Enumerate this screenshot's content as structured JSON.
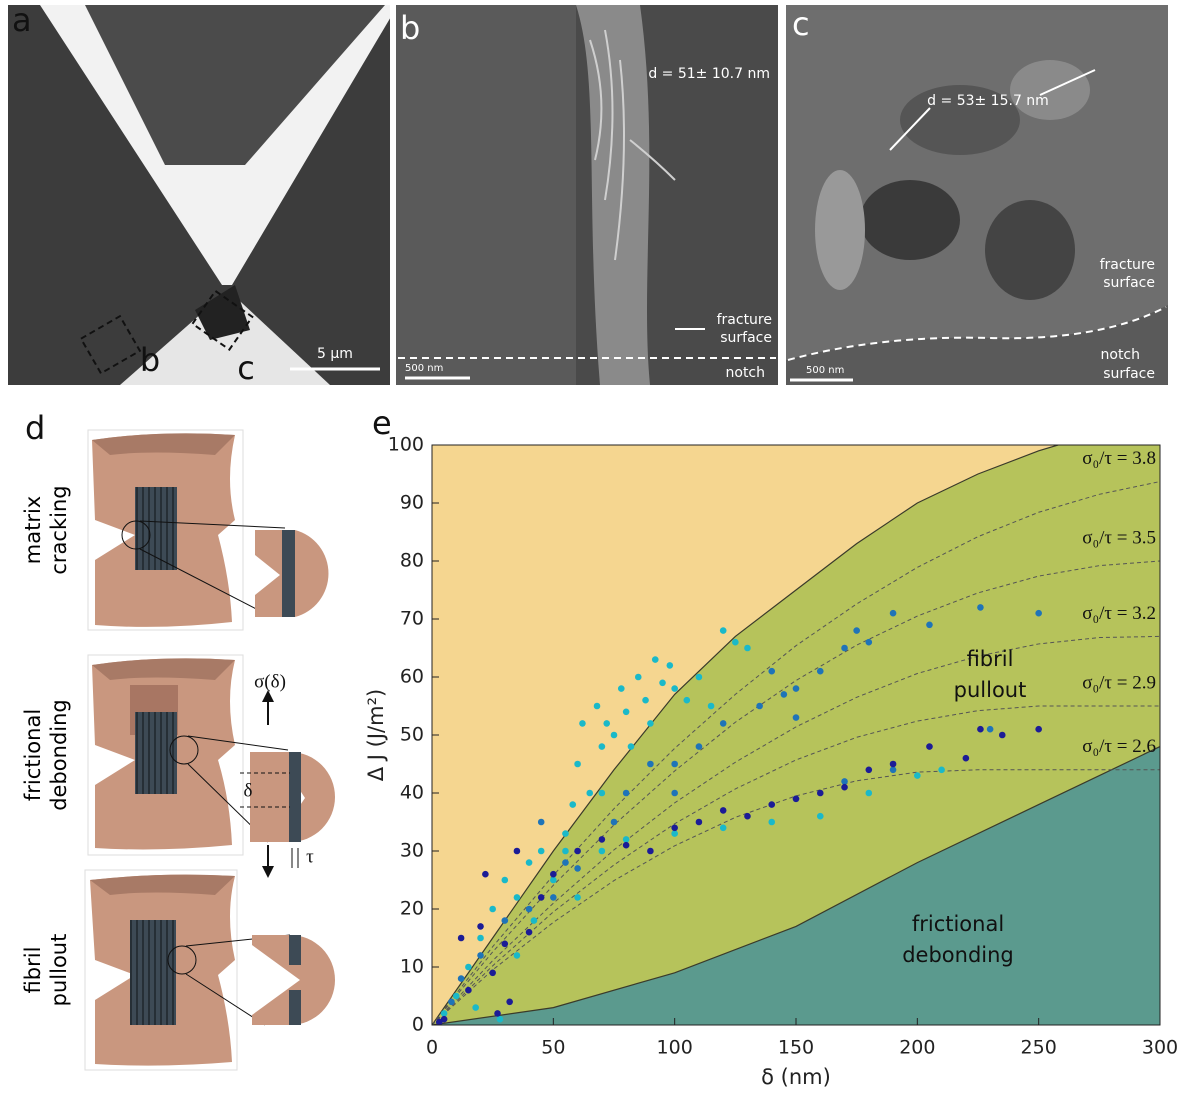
{
  "panel_labels": [
    "a",
    "b",
    "c",
    "d",
    "e"
  ],
  "panel_a": {
    "scale_bar": "5 μm",
    "inset_labels": [
      "b",
      "c"
    ]
  },
  "panel_b": {
    "measurement": "d = 51± 10.7 nm",
    "fracture_surface": [
      "fracture",
      "surface"
    ],
    "notch": "notch",
    "scale_bar": "500 nm"
  },
  "panel_c": {
    "measurement": "d = 53± 15.7 nm",
    "fracture_surface": [
      "fracture",
      "surface"
    ],
    "notch_surface": [
      "notch",
      "surface"
    ],
    "scale_bar": "500 nm"
  },
  "panel_d": {
    "stages": [
      [
        "matrix",
        "cracking"
      ],
      [
        "frictional",
        "debonding"
      ],
      [
        "fibril",
        "pullout"
      ]
    ],
    "stress": "σ(δ)",
    "displacement": "δ",
    "shear": "τ"
  },
  "chart_data": {
    "type": "scatter",
    "xlabel": "δ (nm)",
    "ylabel": "Δ J (J/m²)",
    "xlim": [
      0,
      300
    ],
    "ylim": [
      0,
      100
    ],
    "xticks": [
      0,
      50,
      100,
      150,
      200,
      250,
      300
    ],
    "yticks": [
      0,
      10,
      20,
      30,
      40,
      50,
      60,
      70,
      80,
      90,
      100
    ],
    "background": "#f5d690",
    "region_labels": [
      [
        "fibril",
        "pullout"
      ],
      [
        "frictional",
        "debonding"
      ]
    ],
    "series": [
      {
        "type": "line",
        "style": "solid",
        "color": "#3a3a2a",
        "fill": "#b6c35b",
        "x": [
          0,
          25,
          50,
          75,
          100,
          125,
          150,
          175,
          200,
          225,
          250,
          258
        ],
        "values": [
          0,
          15,
          30,
          44,
          57,
          67,
          75,
          83,
          90,
          95,
          99,
          100
        ]
      },
      {
        "type": "line",
        "style": "solid",
        "color": "#3a3a2a",
        "fill": "#5b9a8e",
        "x": [
          0,
          50,
          100,
          150,
          200,
          250,
          300
        ],
        "values": [
          0,
          3,
          9,
          17,
          28,
          38,
          48
        ]
      },
      {
        "type": "line",
        "style": "dashed",
        "color": "#555",
        "name": "σ₀/τ = 3.8",
        "x": [
          0,
          25,
          50,
          75,
          100,
          125,
          150,
          175,
          200,
          225,
          250,
          275,
          300
        ],
        "values": [
          0,
          13.5,
          25.8,
          37.3,
          47.7,
          57,
          65.4,
          72.6,
          78.9,
          84.2,
          88.4,
          91.5,
          93.7
        ]
      },
      {
        "type": "line",
        "style": "dashed",
        "color": "#555",
        "name": "σ₀/τ = 3.5",
        "x": [
          0,
          25,
          50,
          75,
          100,
          125,
          150,
          175,
          200,
          225,
          250,
          275,
          300
        ],
        "values": [
          0,
          12.6,
          24.1,
          34.5,
          43.8,
          52.2,
          59.4,
          65.5,
          70.5,
          74.5,
          77.4,
          79.2,
          80
        ]
      },
      {
        "type": "line",
        "style": "dashed",
        "color": "#555",
        "name": "σ₀/τ = 3.2",
        "x": [
          0,
          25,
          50,
          75,
          100,
          125,
          150,
          175,
          200,
          225,
          250,
          275,
          300
        ],
        "values": [
          0,
          11.1,
          21,
          30.2,
          38.3,
          45.3,
          51.4,
          56.5,
          60.6,
          63.6,
          65.7,
          66.8,
          67
        ]
      },
      {
        "type": "line",
        "style": "dashed",
        "color": "#555",
        "name": "σ₀/τ = 2.9",
        "x": [
          0,
          25,
          50,
          75,
          100,
          125,
          150,
          175,
          200,
          225,
          250,
          275,
          300
        ],
        "values": [
          0,
          10.2,
          19.5,
          27.6,
          34.7,
          40.7,
          45.7,
          49.6,
          52.4,
          54.2,
          55,
          55,
          55
        ]
      },
      {
        "type": "line",
        "style": "dashed",
        "color": "#555",
        "name": "σ₀/τ = 2.6",
        "x": [
          0,
          25,
          50,
          75,
          100,
          125,
          150,
          175,
          200,
          225,
          250,
          275,
          300
        ],
        "values": [
          0,
          9.5,
          17.7,
          24.9,
          30.9,
          35.8,
          39.5,
          42.1,
          43.6,
          44,
          44,
          44,
          44
        ]
      },
      {
        "type": "scatter",
        "color": "#1ab9c9",
        "x": [
          60,
          62,
          65,
          68,
          70,
          72,
          75,
          78,
          80,
          82,
          85,
          88,
          90,
          92,
          95,
          98,
          100,
          105,
          110,
          115,
          120,
          125,
          130,
          70,
          58,
          55,
          10,
          15,
          20,
          25,
          30,
          35,
          40,
          45,
          50,
          55,
          60,
          70,
          80,
          100,
          120,
          140,
          160,
          180,
          200,
          210,
          5,
          18,
          28,
          35,
          42
        ],
        "values": [
          45,
          52,
          40,
          55,
          48,
          52,
          50,
          58,
          54,
          48,
          60,
          56,
          52,
          63,
          59,
          62,
          58,
          56,
          60,
          55,
          68,
          66,
          65,
          40,
          38,
          33,
          5,
          10,
          15,
          20,
          25,
          22,
          28,
          30,
          25,
          30,
          22,
          30,
          32,
          33,
          34,
          35,
          36,
          40,
          43,
          44,
          2,
          3,
          1,
          12,
          18
        ]
      },
      {
        "type": "scatter",
        "color": "#1f74b8",
        "x": [
          100,
          110,
          120,
          135,
          140,
          145,
          150,
          160,
          170,
          175,
          180,
          190,
          205,
          226,
          250,
          100,
          90,
          80,
          60,
          50,
          40,
          30,
          20,
          12,
          8,
          45,
          55,
          75,
          150,
          170,
          190,
          230,
          150
        ],
        "values": [
          45,
          48,
          52,
          55,
          61,
          57,
          58,
          61,
          65,
          68,
          66,
          71,
          69,
          72,
          71,
          40,
          45,
          40,
          27,
          22,
          20,
          18,
          12,
          8,
          4,
          35,
          28,
          35,
          39,
          42,
          44,
          51,
          53
        ]
      },
      {
        "type": "scatter",
        "color": "#1c1c96",
        "x": [
          5,
          15,
          20,
          22,
          25,
          30,
          32,
          35,
          40,
          45,
          50,
          60,
          70,
          80,
          90,
          100,
          110,
          120,
          130,
          140,
          150,
          160,
          170,
          180,
          190,
          205,
          220,
          226,
          235,
          250,
          3,
          27,
          12
        ],
        "values": [
          1,
          6,
          17,
          26,
          9,
          14,
          4,
          30,
          16,
          22,
          26,
          30,
          32,
          31,
          30,
          34,
          35,
          37,
          36,
          38,
          39,
          40,
          41,
          44,
          45,
          48,
          46,
          51,
          50,
          51,
          0.5,
          2,
          15
        ]
      }
    ]
  }
}
